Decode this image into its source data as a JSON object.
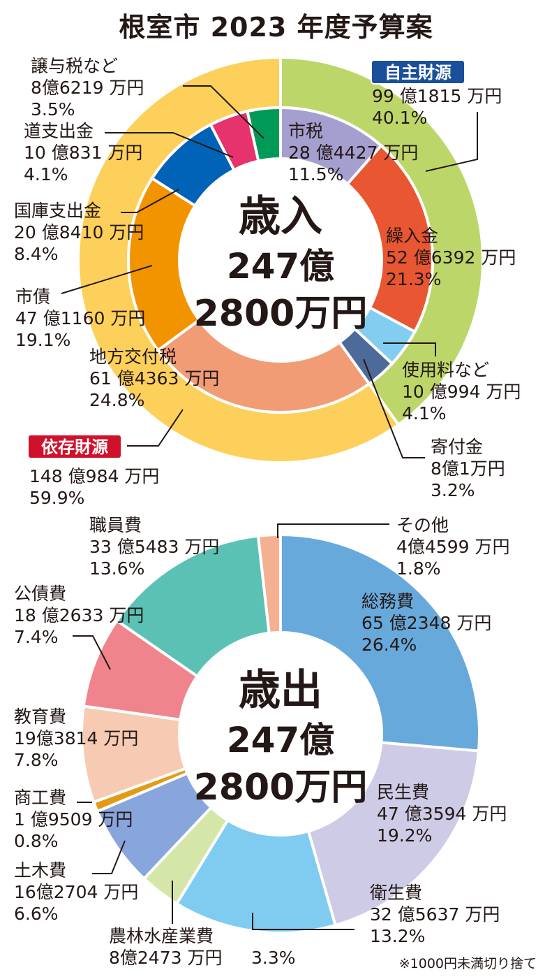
{
  "title": "根室市 2023 年度予算案",
  "note": "※1000円未満切り捨て",
  "colors": {
    "own_badge": "#1a4f9c",
    "dependent_badge": "#d0112b",
    "own_ring": "#bdd66a",
    "dependent_ring": "#fcd05a"
  },
  "chart_data": [
    {
      "type": "pie",
      "name": "revenue",
      "center": {
        "line1": "歳入",
        "line2": "247億",
        "line3": "2800万円"
      },
      "outer_ring": [
        {
          "key": "own",
          "label": "自主財源",
          "amount": "99 億1815 万円",
          "percent": "40.1%",
          "value": 40.1,
          "color": "#bdd66a",
          "badge_color": "#1a4f9c"
        },
        {
          "key": "dependent",
          "label": "依存財源",
          "amount": "148 億984 万円",
          "percent": "59.9%",
          "value": 59.9,
          "color": "#fcd05a",
          "badge_color": "#d0112b"
        }
      ],
      "slices": [
        {
          "label": "市税",
          "amount": "28 億4427 万円",
          "percent": "11.5%",
          "value": 11.5,
          "color": "#a59fd0"
        },
        {
          "label": "繰入金",
          "amount": "52 億6392 万円",
          "percent": "21.3%",
          "value": 21.3,
          "color": "#e85632"
        },
        {
          "label": "使用料など",
          "amount": "10 億994 万円",
          "percent": "4.1%",
          "value": 4.1,
          "color": "#82cdf0"
        },
        {
          "label": "寄付金",
          "amount": "8億1万円",
          "percent": "3.2%",
          "value": 3.2,
          "color": "#4d6a99"
        },
        {
          "label": "地方交付税",
          "amount": "61 億4363 万円",
          "percent": "24.8%",
          "value": 24.8,
          "color": "#f29c76"
        },
        {
          "label": "市債",
          "amount": "47 億1160 万円",
          "percent": "19.1%",
          "value": 19.1,
          "color": "#f29400"
        },
        {
          "label": "国庫支出金",
          "amount": "20 億8410 万円",
          "percent": "8.4%",
          "value": 8.4,
          "color": "#0063b7"
        },
        {
          "label": "道支出金",
          "amount": "10 億831 万円",
          "percent": "4.1%",
          "value": 4.1,
          "color": "#e6336d"
        },
        {
          "label": "譲与税など",
          "amount": "8億6219 万円",
          "percent": "3.5%",
          "value": 3.5,
          "color": "#009a56"
        }
      ]
    },
    {
      "type": "pie",
      "name": "expenditure",
      "center": {
        "line1": "歳出",
        "line2": "247億",
        "line3": "2800万円"
      },
      "slices": [
        {
          "label": "総務費",
          "amount": "65 億2348 万円",
          "percent": "26.4%",
          "value": 26.4,
          "color": "#68a9dc"
        },
        {
          "label": "民生費",
          "amount": "47 億3594 万円",
          "percent": "19.2%",
          "value": 19.2,
          "color": "#cdcbe6"
        },
        {
          "label": "衛生費",
          "amount": "32 億5637 万円",
          "percent": "13.2%",
          "value": 13.2,
          "color": "#80ccf0"
        },
        {
          "label": "農林水産業費",
          "amount": "8億2473 万円",
          "percent": "3.3%",
          "value": 3.3,
          "color": "#d5e6a9"
        },
        {
          "label": "土木費",
          "amount": "16億2704 万円",
          "percent": "6.6%",
          "value": 6.6,
          "color": "#88a6dc"
        },
        {
          "label": "商工費",
          "amount": "1 億9509 万円",
          "percent": "0.8%",
          "value": 0.8,
          "color": "#e39a14"
        },
        {
          "label": "教育費",
          "amount": "19億3814 万円",
          "percent": "7.8%",
          "value": 7.8,
          "color": "#f7cbb3"
        },
        {
          "label": "公債費",
          "amount": "18 億2633 万円",
          "percent": "7.4%",
          "value": 7.4,
          "color": "#ef848c"
        },
        {
          "label": "職員費",
          "amount": "33 億5483 万円",
          "percent": "13.6%",
          "value": 13.6,
          "color": "#5cc1b5"
        },
        {
          "label": "その他",
          "amount": "4億4599 万円",
          "percent": "1.8%",
          "value": 1.8,
          "color": "#f4b192"
        }
      ]
    }
  ]
}
